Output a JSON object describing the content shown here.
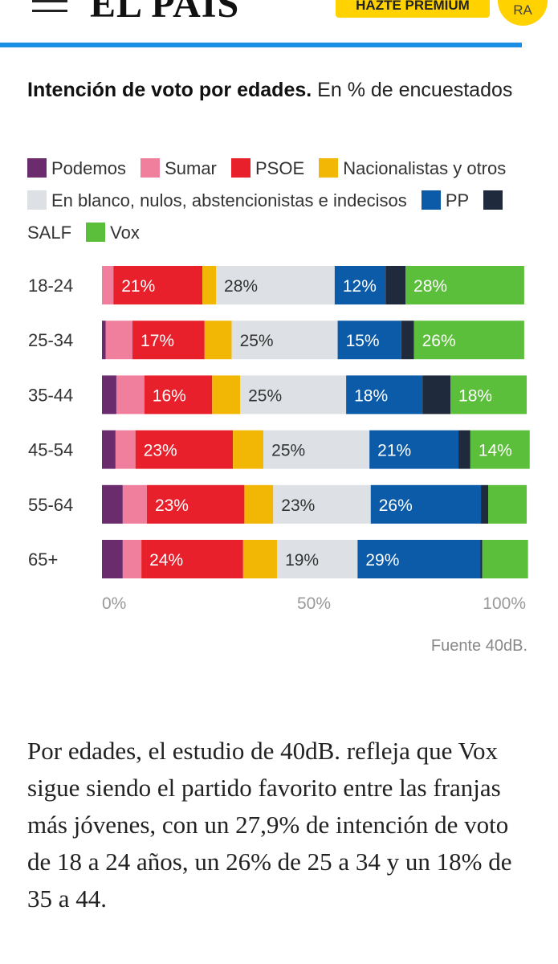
{
  "header": {
    "logo": "EL PAÍS",
    "premium_button": "HAZTE PREMIUM",
    "avatar": "RA"
  },
  "chart_data": {
    "type": "stacked-bar-horizontal",
    "title": "Intención de voto por edades.",
    "subtitle": "En % de encuestados",
    "categories": [
      "18-24",
      "25-34",
      "35-44",
      "45-54",
      "55-64",
      "65+"
    ],
    "series": [
      {
        "name": "Podemos",
        "color": "#6b2c6e",
        "values": [
          0,
          0.9,
          3.4,
          3.2,
          4.9,
          4.9
        ]
      },
      {
        "name": "Sumar",
        "color": "#ef7f9c",
        "values": [
          2.7,
          6.3,
          6.6,
          4.7,
          5.7,
          4.4
        ]
      },
      {
        "name": "PSOE",
        "color": "#e8202b",
        "values": [
          21,
          17,
          16,
          23,
          23,
          24
        ],
        "value_labels": [
          "21%",
          "17%",
          "16%",
          "23%",
          "23%",
          "24%"
        ]
      },
      {
        "name": "Nacionalistas y otros",
        "color": "#f2b705",
        "values": [
          3.2,
          6.4,
          6.6,
          7.2,
          6.8,
          8
        ]
      },
      {
        "name": "En blanco, nulos, abstencionistas e indecisos",
        "color": "#dde1e5",
        "values": [
          28,
          25,
          25,
          25,
          23,
          19
        ],
        "value_labels": [
          "28%",
          "25%",
          "25%",
          "25%",
          "23%",
          "19%"
        ]
      },
      {
        "name": "PP",
        "color": "#0b5ba8",
        "values": [
          12,
          15,
          18,
          21,
          26,
          29
        ],
        "value_labels": [
          "12%",
          "15%",
          "18%",
          "21%",
          "26%",
          "29%"
        ]
      },
      {
        "name": "SALF",
        "color": "#1f2a3c",
        "values": [
          4.7,
          3,
          6.6,
          2.8,
          1.7,
          0.4
        ]
      },
      {
        "name": "Vox",
        "color": "#5cbf3c",
        "values": [
          28,
          26,
          18,
          14,
          9.1,
          10.8
        ],
        "value_labels": [
          "28%",
          "26%",
          "18%",
          "14%",
          null,
          null
        ]
      }
    ],
    "xlim": [
      0,
      100
    ],
    "xticks": [
      {
        "value": 0,
        "label": "0%"
      },
      {
        "value": 50,
        "label": "50%"
      },
      {
        "value": 100,
        "label": "100%"
      }
    ],
    "source": "Fuente 40dB."
  },
  "article": {
    "paragraph": "Por edades, el estudio de 40dB. refleja que Vox sigue siendo el partido favorito entre las franjas más jóvenes, con un 27,9% de intención de voto de 18 a 24 años, un 26% de 25 a 34 y un 18% de 35 a 44."
  }
}
